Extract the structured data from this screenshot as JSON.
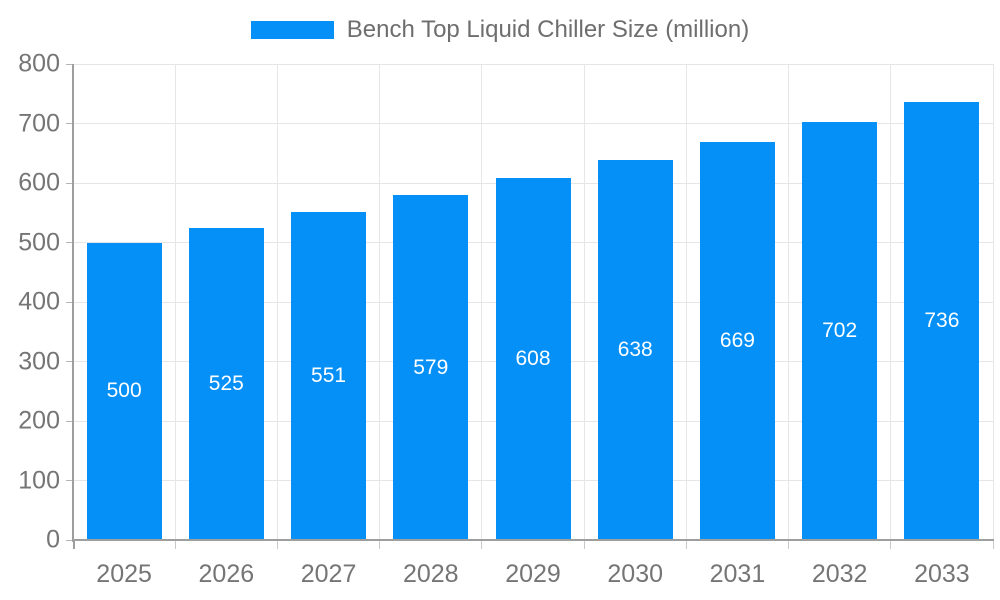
{
  "chart_data": {
    "type": "bar",
    "title": "Bench Top Liquid Chiller Size (million)",
    "categories": [
      "2025",
      "2026",
      "2027",
      "2028",
      "2029",
      "2030",
      "2031",
      "2032",
      "2033"
    ],
    "values": [
      500,
      525,
      551,
      579,
      608,
      638,
      669,
      702,
      736
    ],
    "xlabel": "",
    "ylabel": "",
    "ylim": [
      0,
      800
    ],
    "ytick_step": 100,
    "yticks": [
      0,
      100,
      200,
      300,
      400,
      500,
      600,
      700,
      800
    ],
    "grid": true,
    "legend_position": "top",
    "series_name": "Bench Top Liquid Chiller Size (million)",
    "colors": {
      "bar": "#0590f8",
      "value_label": "#ffffff",
      "axis_text": "#757575",
      "legend_text": "#6e6e6e",
      "gridline": "#e6e6e6",
      "axis_line": "#9e9e9e"
    }
  }
}
